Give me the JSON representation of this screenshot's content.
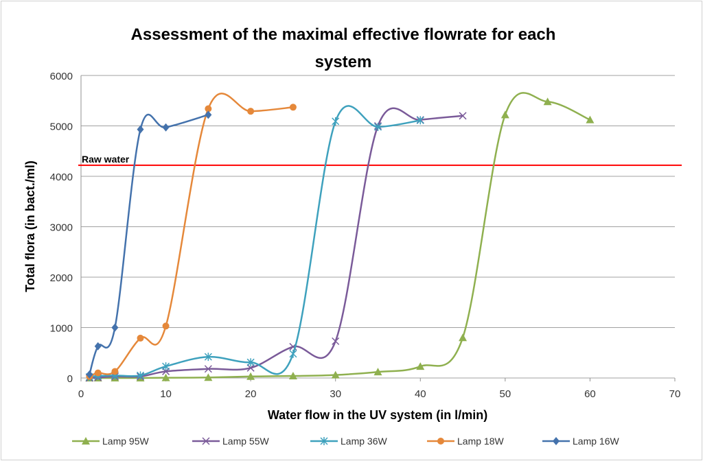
{
  "chart_data": {
    "type": "line",
    "title": "Assessment of the maximal effective flowrate for each system",
    "title_lines": [
      "Assessment of the maximal effective flowrate for each",
      "system"
    ],
    "xlabel": "Water flow in the UV system (in l/min)",
    "ylabel": "Total flora (in bact./ml)",
    "xlim": [
      0,
      70
    ],
    "ylim": [
      0,
      6000
    ],
    "xticks": [
      "0",
      "10",
      "20",
      "30",
      "40",
      "50",
      "60",
      "70"
    ],
    "yticks": [
      "0",
      "1000",
      "2000",
      "3000",
      "4000",
      "5000",
      "6000"
    ],
    "grid": true,
    "legend": "bottom",
    "smoothed": true,
    "reference_line": {
      "label": "Raw water",
      "y": 4220,
      "color": "#ff0000"
    },
    "series": [
      {
        "name": "Lamp 95W",
        "color": "#8fb04f",
        "marker": "triangle",
        "x": [
          1,
          2,
          4,
          7,
          10,
          15,
          20,
          25,
          30,
          35,
          40,
          45,
          50,
          55,
          60
        ],
        "y": [
          0,
          0,
          0,
          0,
          5,
          10,
          30,
          40,
          60,
          120,
          230,
          800,
          5220,
          5480,
          5120
        ]
      },
      {
        "name": "Lamp 55W",
        "color": "#7a5a99",
        "marker": "x",
        "x": [
          1,
          2,
          4,
          7,
          10,
          15,
          20,
          25,
          30,
          35,
          40,
          45
        ],
        "y": [
          0,
          10,
          30,
          30,
          130,
          180,
          200,
          620,
          730,
          5000,
          5120,
          5200
        ]
      },
      {
        "name": "Lamp 36W",
        "color": "#3ea1bd",
        "marker": "star",
        "x": [
          1,
          2,
          4,
          7,
          10,
          15,
          20,
          25,
          30,
          35,
          40
        ],
        "y": [
          20,
          40,
          50,
          50,
          230,
          420,
          310,
          480,
          5090,
          4980,
          5110
        ]
      },
      {
        "name": "Lamp 18W",
        "color": "#e5883a",
        "marker": "circle",
        "x": [
          1,
          2,
          4,
          7,
          10,
          15,
          20,
          25
        ],
        "y": [
          30,
          100,
          130,
          790,
          1030,
          5340,
          5290,
          5370
        ]
      },
      {
        "name": "Lamp 16W",
        "color": "#4472ac",
        "marker": "diamond",
        "x": [
          1,
          2,
          4,
          7,
          10,
          15
        ],
        "y": [
          70,
          630,
          1000,
          4930,
          4970,
          5220
        ]
      }
    ]
  }
}
